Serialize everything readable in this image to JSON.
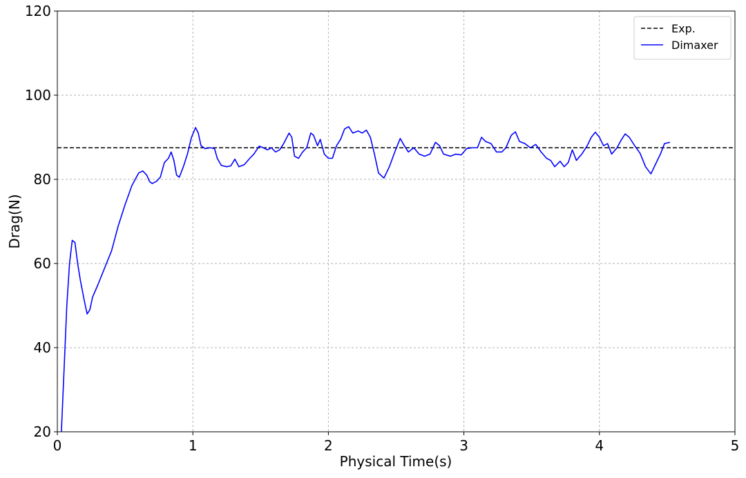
{
  "chart_data": {
    "type": "line",
    "xlabel": "Physical Time(s)",
    "ylabel": "Drag(N)",
    "xlim": [
      0,
      5
    ],
    "ylim": [
      20,
      120
    ],
    "xticks": [
      0,
      1,
      2,
      3,
      4,
      5
    ],
    "yticks": [
      20,
      40,
      60,
      80,
      100,
      120
    ],
    "grid": true,
    "legend": "upper right",
    "series": [
      {
        "name": "Exp.",
        "color": "#000000",
        "dashed": true,
        "x": [
          0,
          5
        ],
        "values": [
          87.5,
          87.5
        ]
      },
      {
        "name": "Dimaxer",
        "color": "#0000ff",
        "x": [
          0.03,
          0.05,
          0.07,
          0.09,
          0.11,
          0.13,
          0.15,
          0.17,
          0.2,
          0.22,
          0.24,
          0.26,
          0.3,
          0.35,
          0.4,
          0.45,
          0.5,
          0.55,
          0.6,
          0.63,
          0.66,
          0.68,
          0.7,
          0.73,
          0.76,
          0.79,
          0.82,
          0.84,
          0.86,
          0.88,
          0.9,
          0.93,
          0.96,
          0.99,
          1.02,
          1.04,
          1.06,
          1.09,
          1.13,
          1.16,
          1.18,
          1.21,
          1.25,
          1.28,
          1.31,
          1.34,
          1.38,
          1.42,
          1.45,
          1.49,
          1.52,
          1.55,
          1.58,
          1.61,
          1.64,
          1.67,
          1.71,
          1.73,
          1.75,
          1.78,
          1.81,
          1.84,
          1.87,
          1.89,
          1.92,
          1.94,
          1.97,
          2.0,
          2.03,
          2.06,
          2.09,
          2.12,
          2.15,
          2.18,
          2.22,
          2.25,
          2.28,
          2.31,
          2.34,
          2.37,
          2.41,
          2.45,
          2.49,
          2.53,
          2.56,
          2.59,
          2.63,
          2.67,
          2.71,
          2.75,
          2.79,
          2.82,
          2.85,
          2.9,
          2.94,
          2.98,
          3.02,
          3.06,
          3.1,
          3.13,
          3.16,
          3.2,
          3.24,
          3.28,
          3.31,
          3.35,
          3.38,
          3.41,
          3.45,
          3.49,
          3.53,
          3.57,
          3.61,
          3.64,
          3.67,
          3.71,
          3.74,
          3.77,
          3.8,
          3.83,
          3.87,
          3.91,
          3.94,
          3.97,
          4.0,
          4.03,
          4.06,
          4.09,
          4.13,
          4.16,
          4.19,
          4.22,
          4.26,
          4.3,
          4.34,
          4.38,
          4.42,
          4.45,
          4.48,
          4.52
        ],
        "values": [
          20,
          35,
          50,
          60,
          65.5,
          65,
          60,
          56,
          51,
          48,
          49,
          52,
          55,
          59,
          63,
          69,
          74,
          78.5,
          81.5,
          82,
          81,
          79.5,
          79,
          79.5,
          80.5,
          84,
          85,
          86.5,
          84.5,
          81,
          80.5,
          83,
          86,
          90,
          92.3,
          91,
          88,
          87.3,
          87.5,
          87.3,
          85,
          83.3,
          83,
          83.2,
          84.8,
          83,
          83.5,
          85,
          86,
          87.9,
          87.5,
          87,
          87.5,
          86.5,
          87,
          88.5,
          91,
          90,
          85.5,
          85,
          86.5,
          87.5,
          91,
          90.5,
          88,
          89.5,
          86,
          85,
          85,
          88,
          89.5,
          92,
          92.5,
          91,
          91.5,
          91,
          91.7,
          90,
          86,
          81.5,
          80.3,
          83,
          86.5,
          89.7,
          88,
          86.5,
          87.5,
          86,
          85.5,
          86,
          88.8,
          88,
          86,
          85.5,
          86,
          85.8,
          87.3,
          87.5,
          87.5,
          90,
          89,
          88.5,
          86.5,
          86.5,
          87.5,
          90.5,
          91.3,
          89,
          88.5,
          87.5,
          88.3,
          86.5,
          85,
          84.5,
          83,
          84.3,
          83,
          84,
          87,
          84.5,
          86,
          88,
          90,
          91.2,
          90,
          88,
          88.5,
          86,
          87.5,
          89.3,
          90.8,
          90,
          88,
          86.2,
          83,
          81.3,
          84,
          86,
          88.5,
          88.8
        ]
      }
    ]
  }
}
